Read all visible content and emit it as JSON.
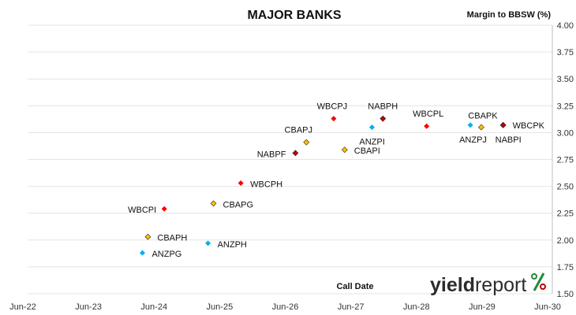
{
  "chart_data": {
    "type": "scatter",
    "title": "MAJOR BANKS",
    "ylabel": "Margin to BBSW (%)",
    "xlabel": "Call Date",
    "x_ticks": [
      "Jun-22",
      "Jun-23",
      "Jun-24",
      "Jun-25",
      "Jun-26",
      "Jun-27",
      "Jun-28",
      "Jun-29",
      "Jun-30"
    ],
    "y_ticks": [
      "4.00",
      "3.75",
      "3.50",
      "3.25",
      "3.00",
      "2.75",
      "2.50",
      "2.25",
      "2.00",
      "1.75",
      "1.50"
    ],
    "xlim": [
      "2022-06",
      "2030-06"
    ],
    "ylim": [
      1.5,
      4.0
    ],
    "grid": "horizontal",
    "series": [
      {
        "color": "#00b0f0",
        "points": [
          {
            "label": "ANZPG",
            "x": "2024-03",
            "y": 1.88
          },
          {
            "label": "ANZPH",
            "x": "2025-03",
            "y": 1.97
          },
          {
            "label": "ANZPI",
            "x": "2027-09",
            "y": 3.05
          },
          {
            "label": "ANZPJ",
            "x": "2029-03",
            "y": 3.07
          }
        ]
      },
      {
        "color": "#ff0000",
        "points": [
          {
            "label": "WBCPI",
            "x": "2024-07",
            "y": 2.29
          },
          {
            "label": "WBCPH",
            "x": "2025-09",
            "y": 2.53
          },
          {
            "label": "WBCPJ",
            "x": "2027-02",
            "y": 3.13
          },
          {
            "label": "WBCPL",
            "x": "2028-07",
            "y": 3.06
          }
        ]
      },
      {
        "color": "#ffc000",
        "points": [
          {
            "label": "CBAPH",
            "x": "2024-04",
            "y": 2.03
          },
          {
            "label": "CBAPG",
            "x": "2025-04",
            "y": 2.34
          },
          {
            "label": "CBAPJ",
            "x": "2026-09",
            "y": 2.91
          },
          {
            "label": "CBAPI",
            "x": "2027-04",
            "y": 2.84
          },
          {
            "label": "CBAPK",
            "x": "2029-05",
            "y": 3.05
          }
        ]
      },
      {
        "color": "#c00000",
        "points": [
          {
            "label": "NABPF",
            "x": "2026-07",
            "y": 2.81
          },
          {
            "label": "NABPH",
            "x": "2027-11",
            "y": 3.13
          },
          {
            "label": "NABPI",
            "x": "2029-09",
            "y": 3.07
          },
          {
            "label": "WBCPK",
            "x": "2029-09",
            "y": 3.07
          }
        ]
      }
    ]
  },
  "brand": {
    "word_bold": "yield",
    "word_regular": "report",
    "mark": "%"
  }
}
